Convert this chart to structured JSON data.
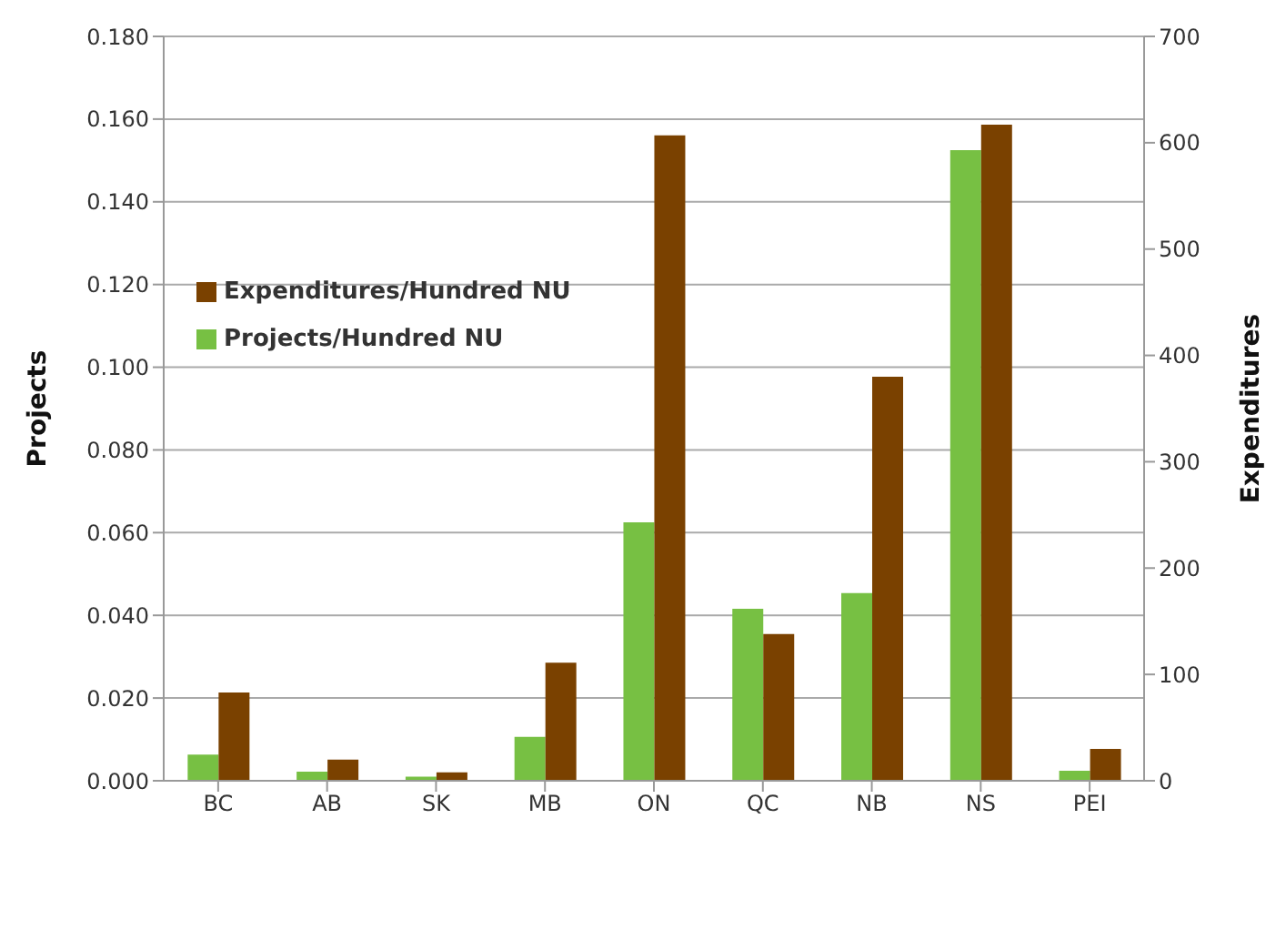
{
  "chart_data": {
    "type": "bar",
    "categories": [
      "BC",
      "AB",
      "SK",
      "MB",
      "ON",
      "QC",
      "NB",
      "NS",
      "PEI"
    ],
    "series": [
      {
        "name": "Projects/Hundred NU",
        "color": "#77c043",
        "values": [
          0.0063,
          0.0022,
          0.001,
          0.0106,
          0.0625,
          0.0416,
          0.0454,
          0.1525,
          0.0024
        ]
      },
      {
        "name": "Expenditures/Hundred NU",
        "color": "#7a4100",
        "axis": "y2",
        "values": [
          83,
          20,
          8,
          111,
          607,
          138,
          380,
          617,
          30
        ]
      }
    ],
    "ylabel": "Projects",
    "y2label": "Expenditures",
    "ylim": [
      0,
      0.18
    ],
    "yticks": [
      {
        "value": 0,
        "label": "0.000"
      },
      {
        "value": 0.02,
        "label": "0.020"
      },
      {
        "value": 0.04,
        "label": "0.040"
      },
      {
        "value": 0.06,
        "label": "0.060"
      },
      {
        "value": 0.08,
        "label": "0.080"
      },
      {
        "value": 0.1,
        "label": "0.100"
      },
      {
        "value": 0.12,
        "label": "0.120"
      },
      {
        "value": 0.14,
        "label": "0.140"
      },
      {
        "value": 0.16,
        "label": "0.160"
      },
      {
        "value": 0.18,
        "label": "0.180"
      }
    ],
    "y2lim": [
      0,
      700
    ],
    "y2ticks": [
      0,
      100,
      200,
      300,
      400,
      500,
      600,
      700
    ],
    "grid": "y",
    "legend": "left"
  }
}
